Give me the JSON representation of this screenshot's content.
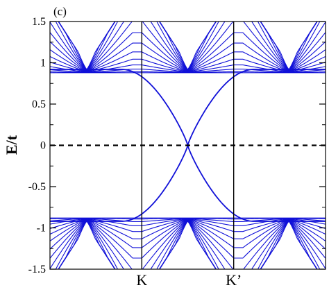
{
  "chart_data": {
    "type": "line",
    "panel_label": "(c)",
    "ylabel": "E/t",
    "xlabel": "",
    "ylim": [
      -1.5,
      1.5
    ],
    "xlim": [
      0,
      1
    ],
    "yticks": [
      -1.5,
      -1,
      -0.5,
      0,
      0.5,
      1,
      1.5
    ],
    "ytick_labels": [
      "-1.5",
      "-1",
      "-0.5",
      "0",
      "0.5",
      "1",
      "1.5"
    ],
    "xticks": [
      {
        "label": "K",
        "x": 0.3333
      },
      {
        "label": "K’",
        "x": 0.6667
      }
    ],
    "reference_line": {
      "y": 0,
      "style": "dashed",
      "color": "#000000"
    },
    "line_color": "#1010d8",
    "edge_states": {
      "crossing": {
        "x": 0.5,
        "y": 0
      },
      "at_K": [
        0.75,
        -0.75
      ],
      "at_Kp": [
        0.75,
        -0.75
      ],
      "gap_edge": 0.92
    },
    "bulk_bands": {
      "count_per_side": 14,
      "lowest_energy": 0.88,
      "cone_minimum": 0.92,
      "cone_centers": [
        0.1333,
        0.5,
        0.8667
      ]
    },
    "grid": false,
    "legend": "none"
  }
}
